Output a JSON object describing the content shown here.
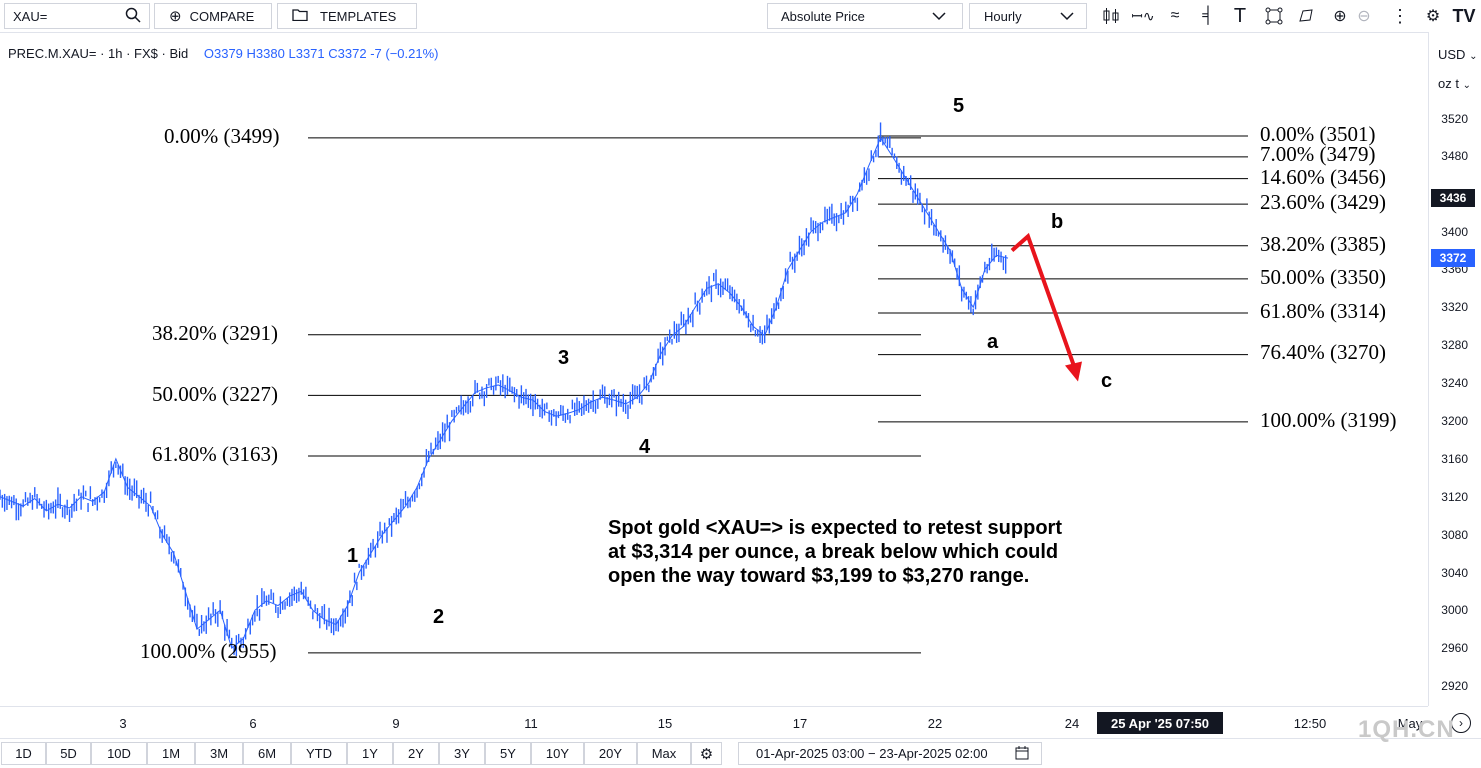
{
  "toolbar": {
    "symbol": "XAU=",
    "compare": "COMPARE",
    "templates": "TEMPLATES",
    "price_type": "Absolute Price",
    "interval": "Hourly"
  },
  "legend": {
    "symbol_line": "PREC.M.XAU= · 1h · FX$ · Bid",
    "open": "O3379",
    "high": "H3380",
    "low": "L3371",
    "close": "C3372",
    "change": "-7 (−0.21%)"
  },
  "price_axis": {
    "currency": "USD",
    "unit": "oz t",
    "ticks": [
      "3520",
      "3480",
      "3440",
      "3400",
      "3360",
      "3320",
      "3280",
      "3240",
      "3200",
      "3160",
      "3120",
      "3080",
      "3040",
      "3000",
      "2960",
      "2920"
    ],
    "last_badge": "3436",
    "close_badge": "3372",
    "last_badge_color": "#131722",
    "close_badge_color": "#2962ff"
  },
  "time_axis": {
    "ticks": [
      "3",
      "6",
      "9",
      "11",
      "15",
      "17",
      "22",
      "24",
      "12:50",
      "May"
    ],
    "crosshair_label": "25 Apr '25  07:50"
  },
  "ranges": [
    "1D",
    "5D",
    "10D",
    "1M",
    "3M",
    "6M",
    "YTD",
    "1Y",
    "2Y",
    "3Y",
    "5Y",
    "10Y",
    "20Y",
    "Max"
  ],
  "date_range": "01-Apr-2025 03:00  −  23-Apr-2025 02:00",
  "watermark": "1QH.CN",
  "chart_data": {
    "type": "line",
    "title": "",
    "series_color": "#2962ff",
    "ylim": [
      2900,
      3540
    ],
    "fib_left": [
      {
        "label": "0.00% (3499)",
        "value": 3499
      },
      {
        "label": "38.20% (3291)",
        "value": 3291
      },
      {
        "label": "50.00% (3227)",
        "value": 3227
      },
      {
        "label": "61.80% (3163)",
        "value": 3163
      },
      {
        "label": "100.00% (2955)",
        "value": 2955
      }
    ],
    "fib_right": [
      {
        "label": "0.00% (3501)",
        "value": 3501
      },
      {
        "label": "7.00% (3479)",
        "value": 3479
      },
      {
        "label": "14.60% (3456)",
        "value": 3456
      },
      {
        "label": "23.60% (3429)",
        "value": 3429
      },
      {
        "label": "38.20% (3385)",
        "value": 3385
      },
      {
        "label": "50.00% (3350)",
        "value": 3350
      },
      {
        "label": "61.80% (3314)",
        "value": 3314
      },
      {
        "label": "76.40% (3270)",
        "value": 3270
      },
      {
        "label": "100.00% (3199)",
        "value": 3199
      }
    ],
    "waves": [
      "1",
      "2",
      "3",
      "4",
      "5",
      "a",
      "b",
      "c"
    ],
    "annotation": [
      "Spot gold <XAU=> is expected to retest support",
      "at $3,314 per ounce, a break below which could",
      "open the way toward $3,199 to $3,270 range."
    ],
    "price_path": [
      3120,
      3115,
      3110,
      3118,
      3105,
      3112,
      3108,
      3120,
      3115,
      3125,
      3160,
      3130,
      3120,
      3110,
      3080,
      3060,
      3020,
      2980,
      2990,
      3000,
      2960,
      2970,
      3000,
      3010,
      3005,
      3015,
      3020,
      3000,
      2990,
      2985,
      3005,
      3040,
      3060,
      3080,
      3095,
      3110,
      3130,
      3160,
      3180,
      3200,
      3215,
      3230,
      3235,
      3238,
      3232,
      3225,
      3222,
      3210,
      3205,
      3208,
      3212,
      3220,
      3225,
      3222,
      3218,
      3225,
      3240,
      3270,
      3290,
      3300,
      3320,
      3340,
      3345,
      3335,
      3320,
      3300,
      3290,
      3320,
      3360,
      3380,
      3400,
      3410,
      3415,
      3420,
      3440,
      3470,
      3499,
      3480,
      3460,
      3440,
      3420,
      3400,
      3380,
      3340,
      3320,
      3360,
      3375,
      3372
    ]
  }
}
